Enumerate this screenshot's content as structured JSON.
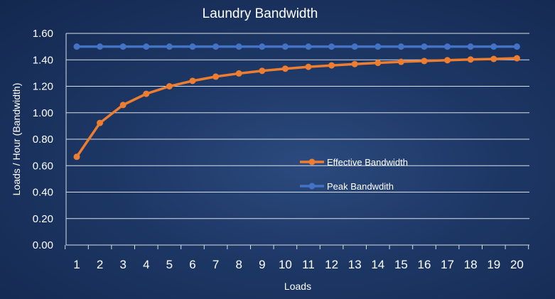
{
  "chart_data": {
    "type": "line",
    "title": "Laundry Bandwidth",
    "xlabel": "Loads",
    "ylabel": "Loads / Hour (Bandwidth)",
    "x": [
      1,
      2,
      3,
      4,
      5,
      6,
      7,
      8,
      9,
      10,
      11,
      12,
      13,
      14,
      15,
      16,
      17,
      18,
      19,
      20
    ],
    "x_tick_labels": [
      "1",
      "2",
      "3",
      "4",
      "5",
      "6",
      "7",
      "8",
      "9",
      "10",
      "11",
      "12",
      "13",
      "14",
      "15",
      "16",
      "17",
      "18",
      "19",
      "20"
    ],
    "ylim": [
      0,
      1.6
    ],
    "y_ticks": [
      0,
      0.2,
      0.4,
      0.6,
      0.8,
      1.0,
      1.2,
      1.4,
      1.6
    ],
    "y_tick_labels": [
      "0.00",
      "0.20",
      "0.40",
      "0.60",
      "0.80",
      "1.00",
      "1.20",
      "1.40",
      "1.60"
    ],
    "grid": true,
    "legend_position": "inside-right",
    "series": [
      {
        "name": "Effective Bandwidth",
        "color": "#ed7d31",
        "values": [
          0.667,
          0.923,
          1.059,
          1.143,
          1.2,
          1.241,
          1.273,
          1.297,
          1.317,
          1.333,
          1.347,
          1.358,
          1.368,
          1.377,
          1.385,
          1.391,
          1.397,
          1.403,
          1.407,
          1.412
        ]
      },
      {
        "name": "Peak Bandwdith",
        "color": "#4472c4",
        "values": [
          1.5,
          1.5,
          1.5,
          1.5,
          1.5,
          1.5,
          1.5,
          1.5,
          1.5,
          1.5,
          1.5,
          1.5,
          1.5,
          1.5,
          1.5,
          1.5,
          1.5,
          1.5,
          1.5,
          1.5
        ]
      }
    ]
  }
}
